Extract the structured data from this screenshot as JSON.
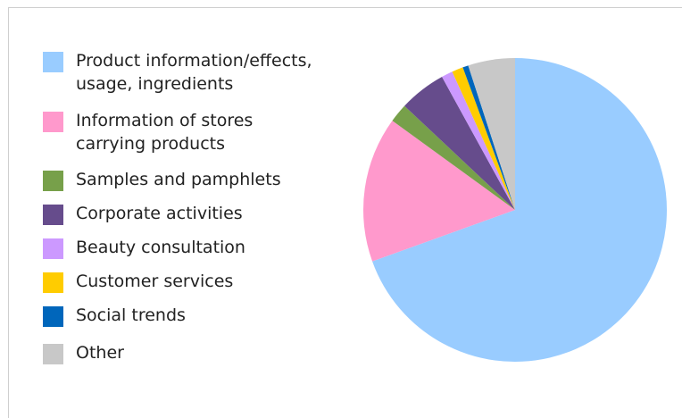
{
  "chart_data": {
    "type": "pie",
    "title": "",
    "start_angle_deg": 0,
    "direction": "clockwise",
    "legend_position": "left",
    "slices": [
      {
        "label": "Product information/effects,\nusage, ingredients",
        "value": 69.5,
        "color": "#99ccff"
      },
      {
        "label": "Information of stores\ncarrying products",
        "value": 15.5,
        "color": "#ff99cc"
      },
      {
        "label": "Samples and pamphlets",
        "value": 2.0,
        "color": "#77a04a"
      },
      {
        "label": "Corporate activities",
        "value": 5.0,
        "color": "#664c8c"
      },
      {
        "label": "Beauty consultation",
        "value": 1.2,
        "color": "#cc99ff"
      },
      {
        "label": "Customer services",
        "value": 1.2,
        "color": "#ffcc00"
      },
      {
        "label": "Social trends",
        "value": 0.6,
        "color": "#0066bb"
      },
      {
        "label": "Other",
        "value": 5.0,
        "color": "#c8c8c8"
      }
    ]
  }
}
